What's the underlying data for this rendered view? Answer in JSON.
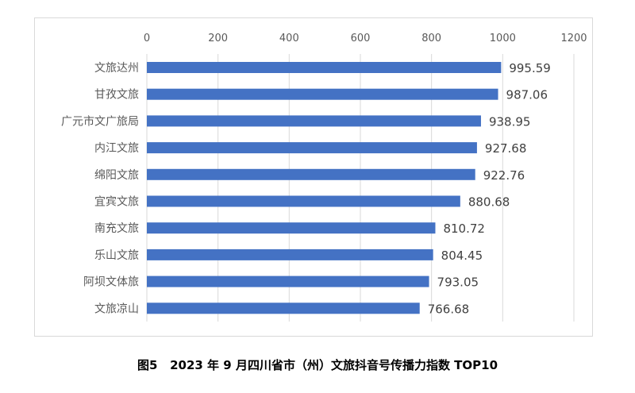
{
  "chart_data": {
    "type": "bar",
    "orientation": "horizontal",
    "title": "图5   2023 年 9 月四川省市（州）文旅抖音号传播力指数 TOP10",
    "categories": [
      "文旅达州",
      "甘孜文旅",
      "广元市文广旅局",
      "内江文旅",
      "绵阳文旅",
      "宜宾文旅",
      "南充文旅",
      "乐山文旅",
      "阿坝文体旅",
      "文旅凉山"
    ],
    "values": [
      995.59,
      987.06,
      938.95,
      927.68,
      922.76,
      880.68,
      810.72,
      804.45,
      793.05,
      766.68
    ],
    "value_labels": [
      "995.59",
      "987.06",
      "938.95",
      "927.68",
      "922.76",
      "880.68",
      "810.72",
      "804.45",
      "793.05",
      "766.68"
    ],
    "xlim": [
      0,
      1200
    ],
    "xticks": [
      "0",
      "200",
      "400",
      "600",
      "800",
      "1000",
      "1200"
    ],
    "xaxis_position": "top",
    "grid": true,
    "legend": "none",
    "bar_color": "#4472c4"
  }
}
